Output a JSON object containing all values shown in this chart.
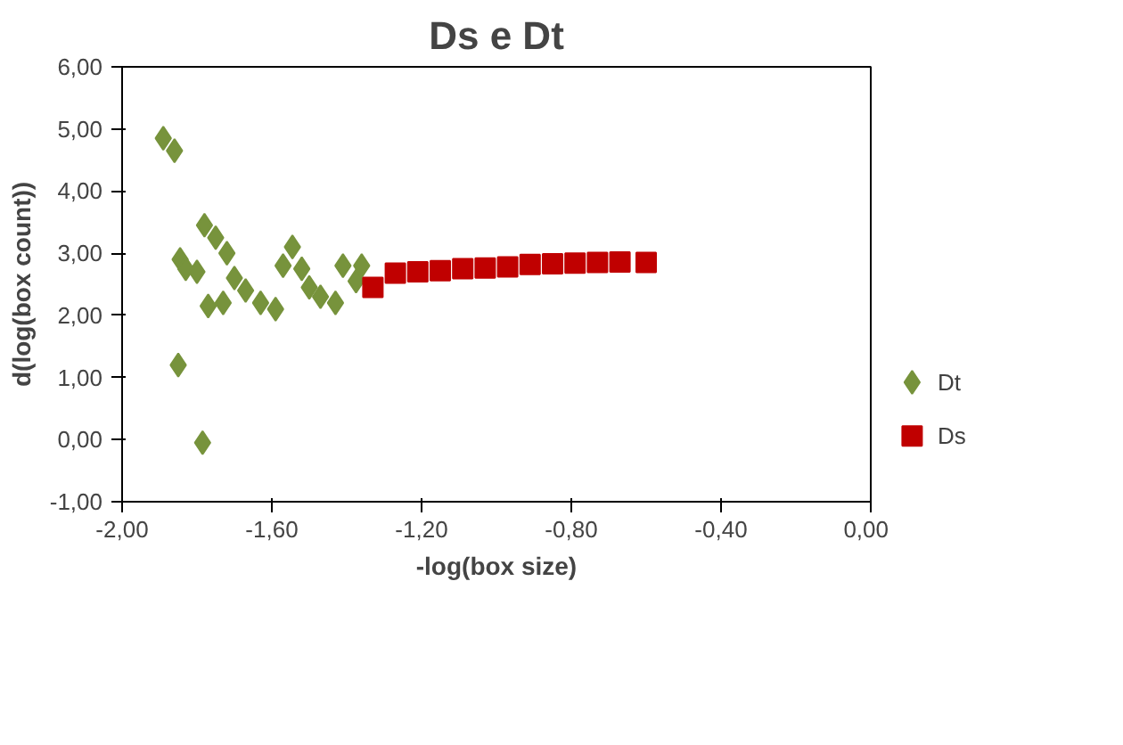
{
  "chart_data": {
    "type": "scatter",
    "title": "Ds e Dt",
    "xlabel": "-log(box size)",
    "ylabel": "d(log(box count))",
    "xlim": [
      -2,
      0
    ],
    "ylim": [
      -1,
      6
    ],
    "xticks": [
      {
        "value": -2,
        "label": "-2,00"
      },
      {
        "value": -1.6,
        "label": "-1,60"
      },
      {
        "value": -1.2,
        "label": "-1,20"
      },
      {
        "value": -0.8,
        "label": "-0,80"
      },
      {
        "value": -0.4,
        "label": "-0,40"
      },
      {
        "value": 0,
        "label": "0,00"
      }
    ],
    "yticks": [
      {
        "value": -1,
        "label": "-1,00"
      },
      {
        "value": 0,
        "label": "0,00"
      },
      {
        "value": 1,
        "label": "1,00"
      },
      {
        "value": 2,
        "label": "2,00"
      },
      {
        "value": 3,
        "label": "3,00"
      },
      {
        "value": 4,
        "label": "4,00"
      },
      {
        "value": 5,
        "label": "5,00"
      },
      {
        "value": 6,
        "label": "6,00"
      }
    ],
    "grid": false,
    "legend": "right",
    "series": [
      {
        "name": "Dt",
        "color": "#77933c",
        "marker": "diamond",
        "x": [
          -1.89,
          -1.86,
          -1.85,
          -1.785,
          -1.845,
          -1.83,
          -1.8,
          -1.78,
          -1.75,
          -1.72,
          -1.77,
          -1.73,
          -1.7,
          -1.67,
          -1.63,
          -1.59,
          -1.57,
          -1.545,
          -1.52,
          -1.5,
          -1.47,
          -1.43,
          -1.41,
          -1.375,
          -1.36
        ],
        "values": [
          4.85,
          4.65,
          1.2,
          -0.05,
          2.9,
          2.75,
          2.7,
          3.45,
          3.25,
          3.0,
          2.15,
          2.2,
          2.6,
          2.4,
          2.2,
          2.1,
          2.8,
          3.1,
          2.75,
          2.45,
          2.3,
          2.2,
          2.8,
          2.55,
          2.8
        ]
      },
      {
        "name": "Ds",
        "color": "#c00000",
        "marker": "square",
        "x": [
          -1.33,
          -1.27,
          -1.21,
          -1.15,
          -1.09,
          -1.03,
          -0.97,
          -0.91,
          -0.85,
          -0.79,
          -0.73,
          -0.67,
          -0.6
        ],
        "values": [
          2.45,
          2.68,
          2.7,
          2.72,
          2.75,
          2.76,
          2.78,
          2.82,
          2.83,
          2.84,
          2.85,
          2.86,
          2.85
        ]
      }
    ]
  }
}
